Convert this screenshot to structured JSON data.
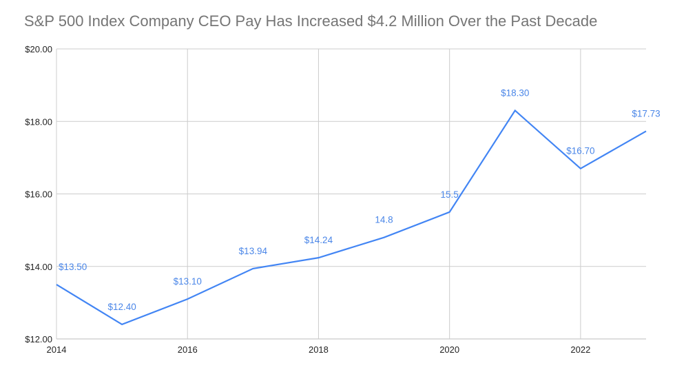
{
  "chart_data": {
    "type": "line",
    "title": "S&P 500 Index Company CEO Pay Has Increased $4.2 Million Over the Past Decade",
    "xlabel": "",
    "ylabel": "",
    "x": [
      2014,
      2015,
      2016,
      2017,
      2018,
      2019,
      2020,
      2021,
      2022,
      2023
    ],
    "series": [
      {
        "values": [
          13.5,
          12.4,
          13.1,
          13.94,
          14.24,
          14.8,
          15.5,
          18.3,
          16.7,
          17.73
        ],
        "data_labels": [
          "$13.50",
          "$12.40",
          "$13.10",
          "$13.94",
          "$14.24",
          "14.8",
          "15.5",
          "$18.30",
          "$16.70",
          "$17.73"
        ],
        "color": "#4285f4"
      }
    ],
    "xlim": [
      2014,
      2023
    ],
    "ylim": [
      12,
      20
    ],
    "x_ticks": [
      "2014",
      "2016",
      "2018",
      "2020",
      "2022"
    ],
    "y_ticks": [
      "$12.00",
      "$14.00",
      "$16.00",
      "$18.00",
      "$20.00"
    ],
    "grid": true,
    "legend": "none",
    "colors": {
      "line": "#4285f4",
      "label": "#4a86e8",
      "grid": "#cccccc",
      "title": "#757575"
    }
  }
}
